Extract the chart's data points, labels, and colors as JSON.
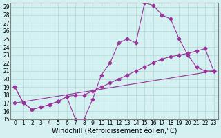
{
  "xlabel": "Windchill (Refroidissement éolien,°C)",
  "ylabel": "",
  "background_color": "#d4f0f0",
  "line_color": "#993399",
  "xlim": [
    -0.5,
    23.5
  ],
  "ylim": [
    15,
    29.5
  ],
  "yticks": [
    15,
    16,
    17,
    18,
    19,
    20,
    21,
    22,
    23,
    24,
    25,
    26,
    27,
    28,
    29
  ],
  "xticks": [
    0,
    1,
    2,
    3,
    4,
    5,
    6,
    7,
    8,
    9,
    10,
    11,
    12,
    13,
    14,
    15,
    16,
    17,
    18,
    19,
    20,
    21,
    22,
    23
  ],
  "series1_x": [
    0,
    1,
    2,
    3,
    4,
    5,
    6,
    7,
    8,
    9,
    10,
    11,
    12,
    13,
    14,
    15,
    16,
    17,
    18,
    19,
    20,
    21,
    22,
    23
  ],
  "series1_y": [
    19.0,
    17.0,
    16.2,
    16.5,
    16.8,
    17.2,
    17.8,
    15.0,
    15.0,
    17.5,
    20.5,
    22.0,
    24.5,
    25.0,
    24.5,
    29.5,
    29.2,
    28.0,
    27.5,
    25.0,
    23.0,
    21.5,
    21.0,
    21.0
  ],
  "series2_x": [
    0,
    1,
    2,
    3,
    4,
    5,
    6,
    7,
    8,
    9,
    10,
    11,
    12,
    13,
    14,
    15,
    16,
    17,
    18,
    19,
    20,
    21,
    22,
    23
  ],
  "series2_y": [
    19.0,
    17.0,
    16.2,
    16.5,
    16.8,
    17.2,
    17.8,
    18.0,
    18.0,
    18.5,
    19.0,
    19.5,
    20.0,
    20.5,
    21.0,
    21.5,
    22.0,
    22.5,
    22.8,
    23.0,
    23.2,
    23.5,
    23.8,
    21.0
  ],
  "series3_x": [
    0,
    23
  ],
  "series3_y": [
    17.0,
    21.0
  ],
  "grid_color": "#b0d8d8",
  "tick_fontsize": 5.5,
  "xlabel_fontsize": 7
}
